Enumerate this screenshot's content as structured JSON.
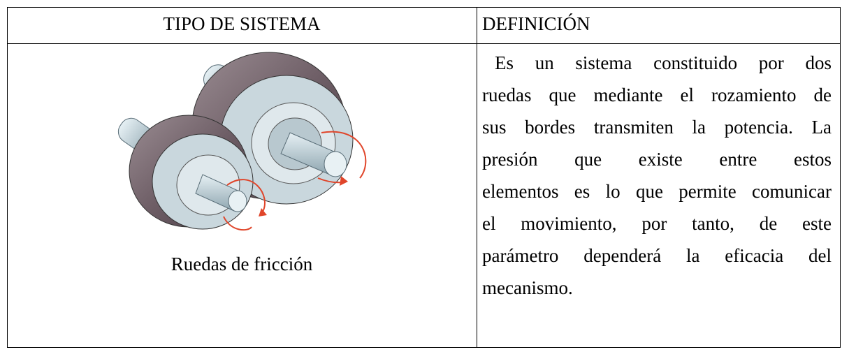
{
  "table": {
    "header": [
      "TIPO DE SISTEMA",
      "DEFINICIÓN"
    ],
    "rows": [
      [
        "Ruedas de fricción",
        [
          "Es un sistema constituido por dos",
          "ruedas que mediante el rozamiento de",
          "sus bordes transmiten la potencia. La",
          "presión que existe entre estos",
          "elementos es lo que permite comunicar",
          "el movimiento, por tanto, de este",
          "parámetro dependerá la eficacia del",
          "mecanismo."
        ]
      ]
    ]
  }
}
